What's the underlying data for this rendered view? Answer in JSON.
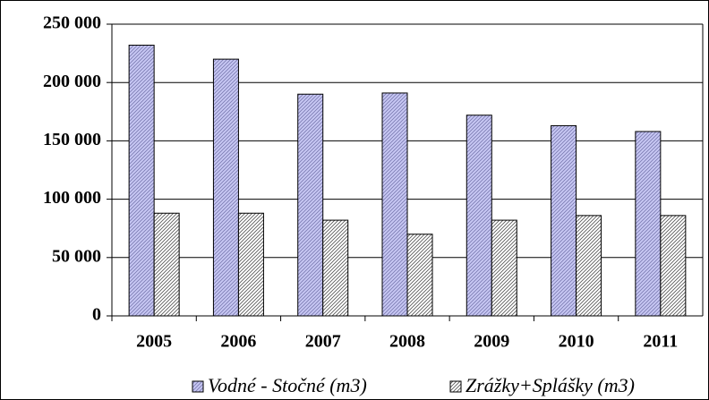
{
  "chart_data": {
    "type": "bar",
    "categories": [
      "2005",
      "2006",
      "2007",
      "2008",
      "2009",
      "2010",
      "2011"
    ],
    "series": [
      {
        "name": "Vodné - Stočné (m3)",
        "color": "#c8c8f4",
        "values": [
          232000,
          220000,
          190000,
          191000,
          172000,
          163000,
          158000
        ]
      },
      {
        "name": "Zrážky+Splášky (m3)",
        "color": "#ffffff",
        "values": [
          88000,
          88000,
          82000,
          70000,
          82000,
          86000,
          86000
        ]
      }
    ],
    "ylim": [
      0,
      250000
    ],
    "yticks": [
      0,
      {
        "value": 50000,
        "label": "50 000"
      },
      {
        "value": 100000,
        "label": "100 000"
      },
      {
        "value": 150000,
        "label": "150 000"
      },
      {
        "value": 200000,
        "label": "200 000"
      },
      {
        "value": 250000,
        "label": "250 000"
      }
    ],
    "grid": true
  }
}
